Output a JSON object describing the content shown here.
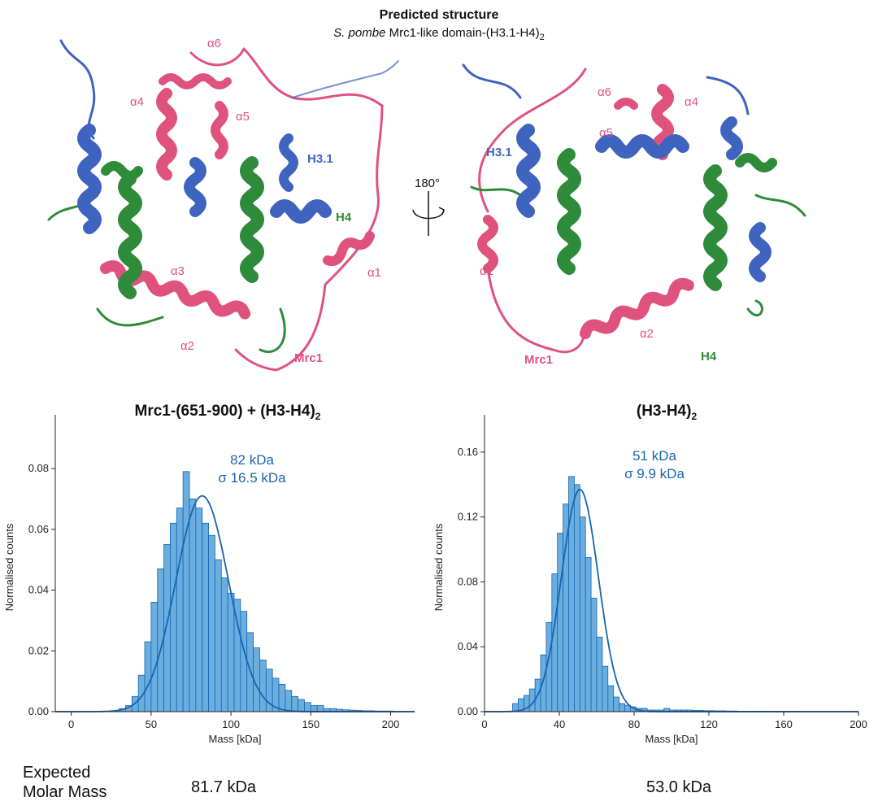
{
  "figure": {
    "title": "Predicted structure",
    "subtitle_italic": "S. pombe",
    "subtitle_rest": " Mrc1-like domain-(H3.1-H4)",
    "subtitle_sub": "2",
    "rotation_label": "180°",
    "left_structure_labels": [
      "α6",
      "α4",
      "α5",
      "H3.1",
      "H4",
      "α3",
      "α1",
      "α2",
      "Mrc1"
    ],
    "right_structure_labels": [
      "α6",
      "α4",
      "α5",
      "H3.1",
      "α1",
      "Mrc1",
      "α2",
      "H4"
    ],
    "colors": {
      "mrc1": "#e0527e",
      "h3": "#3f64c0",
      "h4": "#2e8b3a",
      "hist_fill": "#6aaee0",
      "fit_line": "#1565b0",
      "annot": "#1a66b0"
    }
  },
  "panels": {
    "left": {
      "title_main": "Mrc1-(651-900) + (H3-H4)",
      "title_sub": "2",
      "annotation_mass": "82 kDa",
      "annotation_sigma": "σ 16.5 kDa",
      "expected": "81.7 kDa"
    },
    "right": {
      "title_main": "(H3-H4)",
      "title_sub": "2",
      "annotation_mass": "51 kDa",
      "annotation_sigma": "σ 9.9 kDa",
      "expected": "53.0 kDa"
    }
  },
  "footer": {
    "expected_line1": "Expected",
    "expected_line2": "Molar Mass"
  },
  "chart_data": [
    {
      "type": "bar",
      "title": "Mrc1-(651-900) + (H3-H4)2",
      "xlabel": "Mass [kDa]",
      "ylabel": "Normalised counts",
      "xlim": [
        -10,
        215
      ],
      "ylim": [
        0,
        0.095
      ],
      "xticks": [
        0,
        50,
        100,
        150,
        200
      ],
      "xtick_labels": [
        "0",
        "50",
        "100",
        "150",
        "200"
      ],
      "yticks": [
        0,
        0.02,
        0.04,
        0.06,
        0.08
      ],
      "ytick_labels": [
        "0.00",
        "0.02",
        "0.04",
        "0.06",
        "0.08"
      ],
      "bin_width": 4,
      "bins_start": 30,
      "values": [
        0.001,
        0.002,
        0.005,
        0.012,
        0.023,
        0.036,
        0.047,
        0.055,
        0.062,
        0.067,
        0.079,
        0.07,
        0.067,
        0.062,
        0.058,
        0.05,
        0.044,
        0.039,
        0.037,
        0.033,
        0.026,
        0.021,
        0.017,
        0.014,
        0.011,
        0.009,
        0.007,
        0.005,
        0.004,
        0.003,
        0.002,
        0.002,
        0.001,
        0.001,
        0.0008,
        0.0006,
        0.0005,
        0.0004,
        0.0003,
        0.0003,
        0.0002,
        0.0002,
        0.0002,
        0.0001,
        0.0001
      ],
      "fit": {
        "mu": 82,
        "sigma": 16.5,
        "amplitude": 0.071
      }
    },
    {
      "type": "bar",
      "title": "(H3-H4)2",
      "xlabel": "Mass [kDa]",
      "ylabel": "Normalised counts",
      "xlim": [
        0,
        200
      ],
      "ylim": [
        0,
        0.178
      ],
      "xticks": [
        0,
        40,
        80,
        120,
        160,
        200
      ],
      "xtick_labels": [
        "0",
        "40",
        "80",
        "120",
        "160",
        "200"
      ],
      "yticks": [
        0,
        0.04,
        0.08,
        0.12,
        0.16
      ],
      "ytick_labels": [
        "0.00",
        "0.04",
        "0.08",
        "0.12",
        "0.16"
      ],
      "bin_width": 3,
      "bins_start": 15,
      "values": [
        0.005,
        0.008,
        0.01,
        0.014,
        0.02,
        0.035,
        0.055,
        0.085,
        0.11,
        0.128,
        0.145,
        0.14,
        0.12,
        0.095,
        0.07,
        0.046,
        0.028,
        0.016,
        0.009,
        0.005,
        0.004,
        0.003,
        0.002,
        0.002,
        0.001,
        0.001,
        0.001,
        0.002,
        0.001,
        0.001,
        0.001,
        0.001,
        0.0008,
        0.0008,
        0.0006,
        0.0006,
        0.0005,
        0.0005,
        0.0004,
        0.0004,
        0.0003,
        0.0003,
        0.0003,
        0.0003,
        0.0002,
        0.0002,
        0.0002,
        0.0002,
        0.0002,
        0.0002,
        0.0002,
        0.0002,
        0.0001,
        0.0001,
        0.0001,
        0.0001,
        0.0001,
        0.0001,
        0.0001,
        0.0001
      ],
      "fit": {
        "mu": 51,
        "sigma": 9.9,
        "amplitude": 0.137
      }
    }
  ]
}
